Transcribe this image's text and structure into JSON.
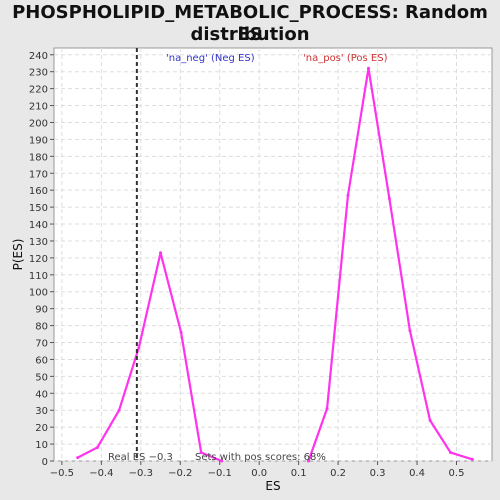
{
  "title_line1": "PHOSPHOLIPID_METABOLIC_PROCESS: Random ES",
  "title_line2": "distribution",
  "chart_data": {
    "type": "line",
    "xlabel": "ES",
    "ylabel": "P(ES)",
    "xlim": [
      -0.52,
      0.59
    ],
    "ylim": [
      0,
      244
    ],
    "xticks": [
      -0.5,
      -0.4,
      -0.3,
      -0.2,
      -0.1,
      0.0,
      0.1,
      0.2,
      0.3,
      0.4,
      0.5
    ],
    "xtick_labels": [
      "−0.5",
      "−0.4",
      "−0.3",
      "−0.2",
      "−0.1",
      "0.0",
      "0.1",
      "0.2",
      "0.3",
      "0.4",
      "0.5"
    ],
    "yticks": [
      0,
      10,
      20,
      30,
      40,
      50,
      60,
      70,
      80,
      90,
      100,
      110,
      120,
      130,
      140,
      150,
      160,
      170,
      180,
      190,
      200,
      210,
      220,
      230,
      240
    ],
    "grid": true,
    "series": [
      {
        "name": "'na_neg' (Neg ES)",
        "color": "#ff33ee",
        "label_color": "#3333cc",
        "x": [
          -0.46,
          -0.41,
          -0.355,
          -0.305,
          -0.25,
          -0.198,
          -0.147,
          -0.095
        ],
        "y": [
          2,
          8,
          30,
          67,
          123,
          76,
          5,
          0
        ]
      },
      {
        "name": "'na_pos' (Pos ES)",
        "color": "#ff33ee",
        "label_color": "#cc3333",
        "x": [
          0.125,
          0.172,
          0.225,
          0.277,
          0.33,
          0.382,
          0.433,
          0.485,
          0.54
        ],
        "y": [
          0,
          31,
          157,
          232,
          155,
          77,
          24,
          5,
          1
        ]
      }
    ],
    "real_es": -0.31,
    "real_es_label": "Real ES −0.3",
    "pos_scores_label": "Sets with pos scores: 68%"
  }
}
